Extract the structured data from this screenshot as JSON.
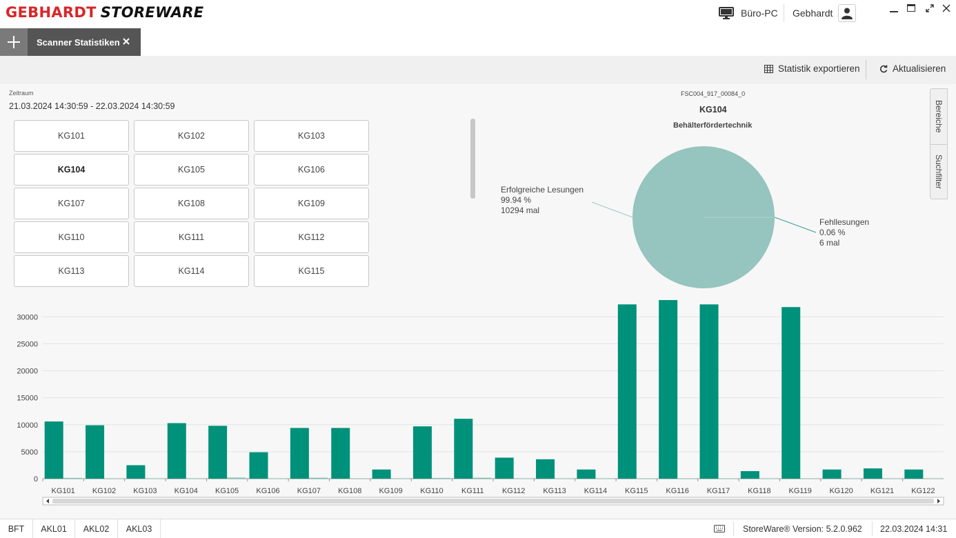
{
  "app": {
    "logo_red": "GEBHARDT",
    "logo_black": "STOREWARE",
    "computer_name": "Büro-PC",
    "user_name": "Gebhardt"
  },
  "tabs": [
    {
      "label": "Scanner Statistiken"
    }
  ],
  "toolbar": {
    "export_label": "Statistik exportieren",
    "refresh_label": "Aktualisieren"
  },
  "filter": {
    "period_label": "Zeitraum",
    "period_value": "21.03.2024 14:30:59 - 22.03.2024 14:30:59"
  },
  "scanner_buttons": [
    "KG101",
    "KG102",
    "KG103",
    "KG104",
    "KG105",
    "KG106",
    "KG107",
    "KG108",
    "KG109",
    "KG110",
    "KG111",
    "KG112",
    "KG113",
    "KG114",
    "KG115"
  ],
  "selected_scanner": "KG104",
  "side_tabs": [
    "Bereiche",
    "Suchfilter"
  ],
  "pie": {
    "scanner_id": "FSC004_917_00084_0",
    "title": "KG104",
    "subtitle": "Behälterfördertechnik",
    "success_label": "Erfolgreiche Lesungen",
    "success_pct": "99.94 %",
    "success_count": "10294 mal",
    "fail_label": "Fehllesungen",
    "fail_pct": "0.06 %",
    "fail_count": "6 mal",
    "color": "#96c4be"
  },
  "chart_data": {
    "type": "bar",
    "categories": [
      "KG101",
      "KG102",
      "KG103",
      "KG104",
      "KG105",
      "KG106",
      "KG107",
      "KG108",
      "KG109",
      "KG110",
      "KG111",
      "KG112",
      "KG113",
      "KG114",
      "KG115",
      "KG116",
      "KG117",
      "KG118",
      "KG119",
      "KG120",
      "KG121",
      "KG122"
    ],
    "series": [
      {
        "name": "Erfolgreiche Lesungen",
        "color": "#00917a",
        "values": [
          10600,
          9900,
          2500,
          10294,
          9800,
          4900,
          9400,
          9400,
          1700,
          9700,
          11100,
          3900,
          3600,
          1700,
          32300,
          33100,
          32300,
          1400,
          31800,
          1700,
          1900,
          1700
        ]
      },
      {
        "name": "Fehllesungen",
        "color": "#7cc4b6",
        "values": [
          150,
          40,
          10,
          6,
          200,
          10,
          180,
          20,
          10,
          140,
          180,
          10,
          10,
          10,
          20,
          20,
          20,
          10,
          20,
          10,
          10,
          10
        ]
      }
    ],
    "yticks": [
      0,
      5000,
      10000,
      15000,
      20000,
      25000,
      30000
    ],
    "ylim": [
      0,
      34000
    ],
    "grid": true
  },
  "statusbar": {
    "tabs": [
      "BFT",
      "AKL01",
      "AKL02",
      "AKL03"
    ],
    "version": "StoreWare® Version: 5.2.0.962",
    "datetime": "22.03.2024 14:31"
  }
}
